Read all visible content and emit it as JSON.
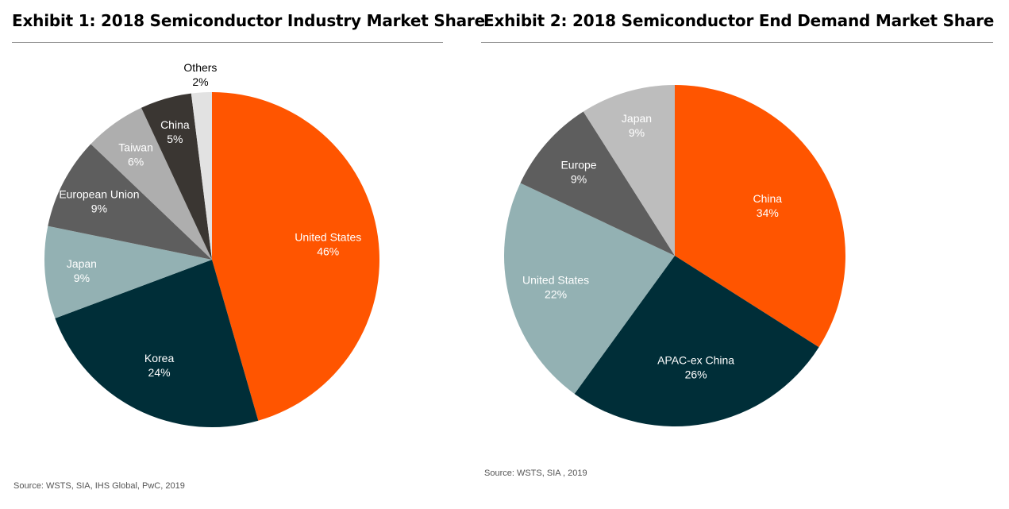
{
  "chart_data": [
    {
      "type": "pie",
      "title": "Exhibit 1: 2018 Semiconductor Industry Market Share",
      "source": "Source: WSTS, SIA, IHS Global, PwC, 2019",
      "slices": [
        {
          "label": "United States",
          "value": 46,
          "value_label": "46%",
          "color": "#FF5500",
          "text_color": "#ffffff"
        },
        {
          "label": "Korea",
          "value": 24,
          "value_label": "24%",
          "color": "#002E38",
          "text_color": "#ffffff"
        },
        {
          "label": "Japan",
          "value": 9,
          "value_label": "9%",
          "color": "#93B1B3",
          "text_color": "#ffffff"
        },
        {
          "label": "European Union",
          "value": 9,
          "value_label": "9%",
          "color": "#5E5E5E",
          "text_color": "#ffffff"
        },
        {
          "label": "Taiwan",
          "value": 6,
          "value_label": "6%",
          "color": "#AEAEAE",
          "text_color": "#ffffff"
        },
        {
          "label": "China",
          "value": 5,
          "value_label": "5%",
          "color": "#3A3632",
          "text_color": "#ffffff"
        },
        {
          "label": "Others",
          "value": 2,
          "value_label": "2%",
          "color": "#E2E2E2",
          "text_color": "#000000"
        }
      ]
    },
    {
      "type": "pie",
      "title": "Exhibit 2: 2018 Semiconductor End Demand Market Share",
      "source": "Source: WSTS, SIA , 2019",
      "slices": [
        {
          "label": "China",
          "value": 34,
          "value_label": "34%",
          "color": "#FF5500",
          "text_color": "#ffffff"
        },
        {
          "label": "APAC-ex China",
          "value": 26,
          "value_label": "26%",
          "color": "#002E38",
          "text_color": "#ffffff"
        },
        {
          "label": "United States",
          "value": 22,
          "value_label": "22%",
          "color": "#93B1B3",
          "text_color": "#ffffff"
        },
        {
          "label": "Europe",
          "value": 9,
          "value_label": "9%",
          "color": "#5E5E5E",
          "text_color": "#ffffff"
        },
        {
          "label": "Japan",
          "value": 9,
          "value_label": "9%",
          "color": "#BDBDBD",
          "text_color": "#ffffff"
        }
      ]
    }
  ]
}
